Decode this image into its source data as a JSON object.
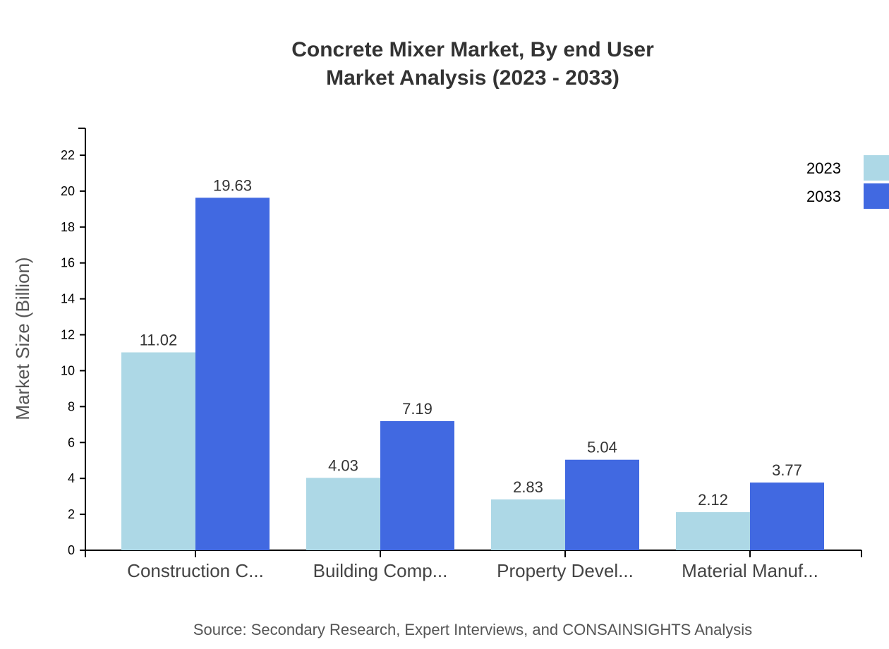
{
  "chart_data": {
    "type": "bar",
    "title": [
      "Concrete Mixer Market, By end User",
      "Market Analysis (2023 - 2033)"
    ],
    "xlabel": "",
    "ylabel": "Market Size (Billion)",
    "categories": [
      "Construction C...",
      "Building Comp...",
      "Property Devel...",
      "Material Manuf..."
    ],
    "series": [
      {
        "name": "2023",
        "color": "#ADD8E6",
        "values": [
          11.02,
          4.03,
          2.83,
          2.12
        ]
      },
      {
        "name": "2033",
        "color": "#4169E1",
        "values": [
          19.63,
          7.19,
          5.04,
          3.77
        ]
      }
    ],
    "ylim": [
      0,
      23.5
    ],
    "yticks": [
      0,
      2,
      4,
      6,
      8,
      10,
      12,
      14,
      16,
      18,
      20,
      22
    ],
    "grid": false,
    "legend_position": "top-right",
    "source": "Source: Secondary Research, Expert Interviews, and CONSAINSIGHTS Analysis"
  }
}
